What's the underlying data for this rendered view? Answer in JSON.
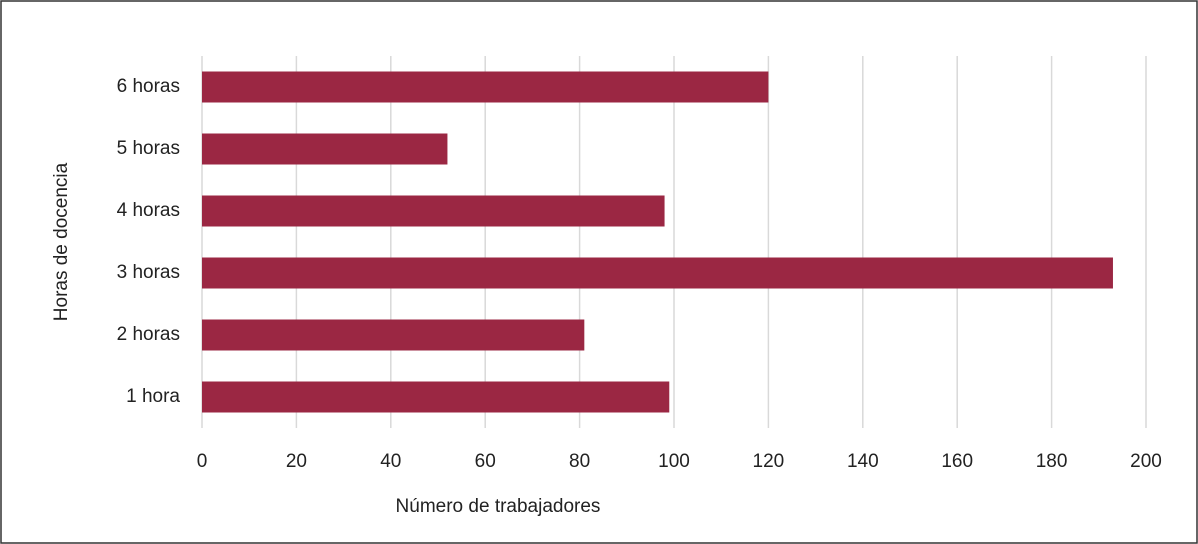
{
  "chart_data": {
    "type": "bar",
    "orientation": "horizontal",
    "categories": [
      "1 hora",
      "2 horas",
      "3 horas",
      "4 horas",
      "5 horas",
      "6 horas"
    ],
    "values": [
      99,
      81,
      193,
      98,
      52,
      120
    ],
    "color": "#9b2743",
    "xlabel": "Número de trabajadores",
    "ylabel": "Horas de docencia",
    "xlim": [
      0,
      200
    ],
    "xticks": [
      0,
      20,
      40,
      60,
      80,
      100,
      120,
      140,
      160,
      180,
      200
    ],
    "grid": true
  }
}
